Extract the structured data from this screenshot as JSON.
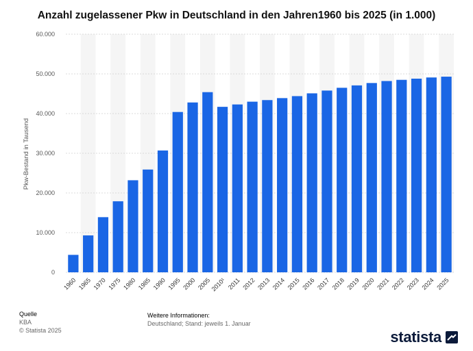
{
  "chart_data": {
    "type": "bar",
    "title": "Anzahl zugelassener Pkw in Deutschland in den Jahren1960 bis 2025 (in 1.000)",
    "ylabel": "Pkw-Bestand in Tausend",
    "xlabel": "",
    "ylim": [
      0,
      60000
    ],
    "yticks": [
      0,
      10000,
      20000,
      30000,
      40000,
      50000,
      60000
    ],
    "ytick_labels": [
      "0",
      "10.000",
      "20.000",
      "30.000",
      "40.000",
      "50.000",
      "60.000"
    ],
    "categories": [
      "1960",
      "1965",
      "1970",
      "1975",
      "1980",
      "1985",
      "1990",
      "1995",
      "2000",
      "2005",
      "2010¹",
      "2011",
      "2012",
      "2013",
      "2014",
      "2015",
      "2016",
      "2017",
      "2018",
      "2019",
      "2020",
      "2021",
      "2022",
      "2023",
      "2024",
      "2025"
    ],
    "values": [
      4400,
      9300,
      13900,
      17900,
      23200,
      25900,
      30700,
      40400,
      42800,
      45400,
      41700,
      42300,
      43000,
      43400,
      43900,
      44400,
      45100,
      45800,
      46500,
      47100,
      47700,
      48200,
      48500,
      48800,
      49100,
      49300
    ],
    "bar_color": "#1a66e5",
    "grid": true
  },
  "footer": {
    "source_heading": "Quelle",
    "source": "KBA",
    "copyright": "© Statista 2025",
    "info_heading": "Weitere Informationen:",
    "info": "Deutschland; Stand: jeweils 1. Januar"
  },
  "brand": {
    "name": "statista",
    "color": "#0b1a3a"
  }
}
